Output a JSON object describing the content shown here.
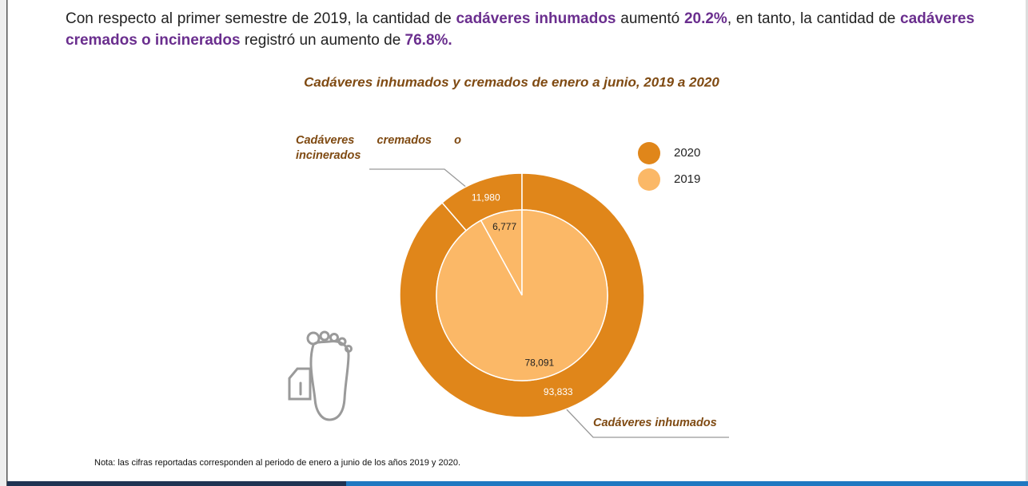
{
  "paragraph": [
    {
      "text": "Con respecto al primer semestre de 2019, la cantidad de ",
      "emphasis": false
    },
    {
      "text": "cadáveres inhumados",
      "emphasis": true
    },
    {
      "text": " aumentó ",
      "emphasis": false
    },
    {
      "text": "20.2%",
      "emphasis": true
    },
    {
      "text": ", en tanto, la cantidad de ",
      "emphasis": false
    },
    {
      "text": "cadáveres cremados o incinerados",
      "emphasis": true
    },
    {
      "text": " registró un aumento de ",
      "emphasis": false
    },
    {
      "text": "76.8%.",
      "emphasis": true
    }
  ],
  "chart_data": {
    "type": "nested-donut",
    "title": "Cadáveres inhumados y cremados de enero a junio, 2019 a 2020",
    "categories": [
      "Cadáveres cremados o incinerados",
      "Cadáveres inhumados"
    ],
    "series": [
      {
        "name": "2020",
        "color": "#e0861a",
        "values": [
          11980,
          93833
        ],
        "value_labels": [
          "11,980",
          "93,833"
        ],
        "label_color": "#ffffff"
      },
      {
        "name": "2019",
        "color": "#fbb867",
        "values": [
          6777,
          78091
        ],
        "value_labels": [
          "6,777",
          "78,091"
        ],
        "label_color": "#222222"
      }
    ],
    "legend": "top-right"
  },
  "note": "Nota: las cifras reportadas corresponden al periodo de enero a junio de los años 2019 y 2020."
}
